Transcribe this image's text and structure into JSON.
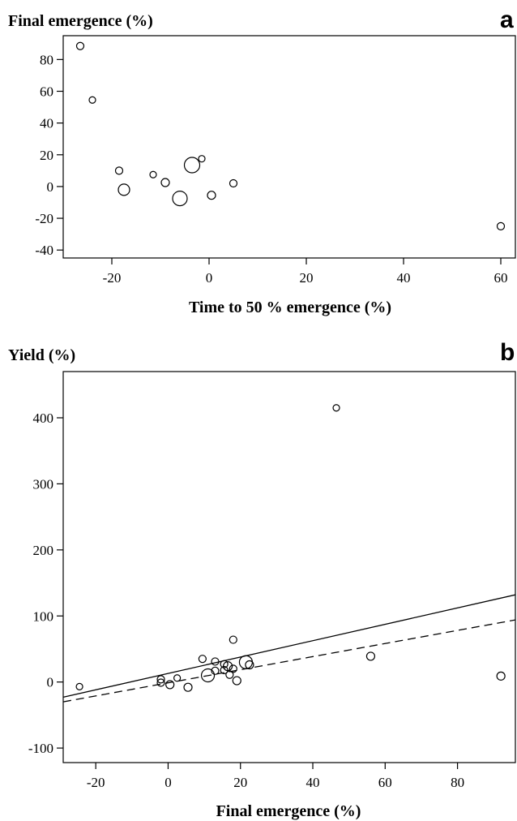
{
  "chart_data": [
    {
      "panel": "a",
      "type": "scatter",
      "ylabel": "Final emergence (%)",
      "xlabel": "Time to 50 % emergence (%)",
      "xlim": [
        -30,
        63
      ],
      "ylim": [
        -45,
        95
      ],
      "xticks": [
        -20,
        0,
        20,
        40,
        60
      ],
      "yticks": [
        -40,
        -20,
        0,
        20,
        40,
        60,
        80
      ],
      "points": [
        {
          "x": -26.5,
          "y": 88.5,
          "size": 4.5
        },
        {
          "x": -24.0,
          "y": 54.5,
          "size": 4
        },
        {
          "x": -18.5,
          "y": 10.0,
          "size": 4.5
        },
        {
          "x": -17.5,
          "y": -2.0,
          "size": 7
        },
        {
          "x": -11.5,
          "y": 7.5,
          "size": 4
        },
        {
          "x": -9.0,
          "y": 2.5,
          "size": 5
        },
        {
          "x": -6.0,
          "y": -7.5,
          "size": 9
        },
        {
          "x": -3.5,
          "y": 13.5,
          "size": 9.5
        },
        {
          "x": -1.5,
          "y": 17.5,
          "size": 4
        },
        {
          "x": 0.5,
          "y": -5.5,
          "size": 5
        },
        {
          "x": 5.0,
          "y": 2.0,
          "size": 4.5
        },
        {
          "x": 60.0,
          "y": -25.0,
          "size": 4.5
        }
      ]
    },
    {
      "panel": "b",
      "type": "scatter",
      "ylabel": "Yield (%)",
      "xlabel": "Final emergence (%)",
      "xlim": [
        -29,
        96
      ],
      "ylim": [
        -122,
        470
      ],
      "xticks": [
        -20,
        0,
        20,
        40,
        60,
        80
      ],
      "yticks": [
        -100,
        0,
        100,
        200,
        300,
        400
      ],
      "points": [
        {
          "x": -24.5,
          "y": -7,
          "size": 4
        },
        {
          "x": -2.0,
          "y": 4,
          "size": 4.5
        },
        {
          "x": -2.0,
          "y": -1,
          "size": 4.5
        },
        {
          "x": 0.5,
          "y": -4,
          "size": 5
        },
        {
          "x": 2.5,
          "y": 6,
          "size": 4
        },
        {
          "x": 5.5,
          "y": -8,
          "size": 5
        },
        {
          "x": 9.5,
          "y": 35,
          "size": 4.5
        },
        {
          "x": 11.0,
          "y": 10,
          "size": 8
        },
        {
          "x": 13.0,
          "y": 31,
          "size": 4.5
        },
        {
          "x": 13.0,
          "y": 17,
          "size": 4.5
        },
        {
          "x": 15.5,
          "y": 27,
          "size": 4.5
        },
        {
          "x": 15.5,
          "y": 18,
          "size": 4.5
        },
        {
          "x": 16.5,
          "y": 24,
          "size": 5.5
        },
        {
          "x": 17.0,
          "y": 11,
          "size": 4.5
        },
        {
          "x": 18.0,
          "y": 64,
          "size": 4.5
        },
        {
          "x": 18.0,
          "y": 20,
          "size": 4.5
        },
        {
          "x": 19.0,
          "y": 2,
          "size": 5
        },
        {
          "x": 21.5,
          "y": 30,
          "size": 8
        },
        {
          "x": 22.5,
          "y": 26,
          "size": 5
        },
        {
          "x": 46.5,
          "y": 415,
          "size": 4
        },
        {
          "x": 56.0,
          "y": 39,
          "size": 5
        },
        {
          "x": 92.0,
          "y": 9,
          "size": 5
        }
      ],
      "lines": [
        {
          "style": "solid",
          "x": [
            -29,
            96
          ],
          "y": [
            -23,
            132
          ]
        },
        {
          "style": "dashed",
          "x": [
            -29,
            96
          ],
          "y": [
            -30,
            94
          ]
        }
      ]
    }
  ]
}
